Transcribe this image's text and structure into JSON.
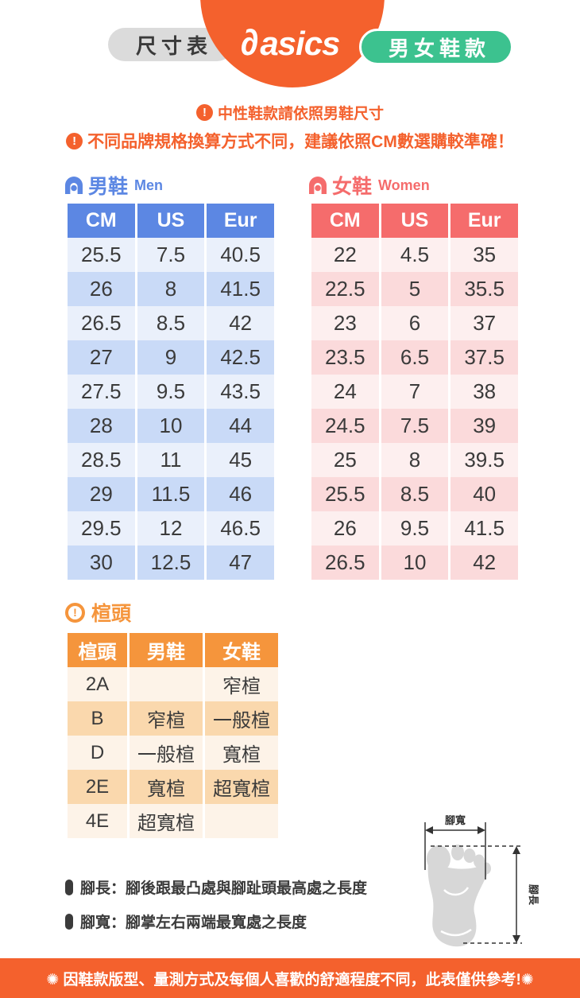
{
  "header": {
    "left_pill": "尺寸表",
    "brand": "asics",
    "brand_mark": "∂",
    "right_pill": "男女鞋款"
  },
  "icons": {
    "alert_glyph": "!"
  },
  "notices": [
    "中性鞋款請依照男鞋尺寸",
    "不同品牌規格換算方式不同，建議依照CM數選購較準確！"
  ],
  "men_table": {
    "title_zh": "男鞋",
    "title_en": "Men",
    "headers": [
      "CM",
      "US",
      "Eur"
    ],
    "rows": [
      [
        "25.5",
        "7.5",
        "40.5"
      ],
      [
        "26",
        "8",
        "41.5"
      ],
      [
        "26.5",
        "8.5",
        "42"
      ],
      [
        "27",
        "9",
        "42.5"
      ],
      [
        "27.5",
        "9.5",
        "43.5"
      ],
      [
        "28",
        "10",
        "44"
      ],
      [
        "28.5",
        "11",
        "45"
      ],
      [
        "29",
        "11.5",
        "46"
      ],
      [
        "29.5",
        "12",
        "46.5"
      ],
      [
        "30",
        "12.5",
        "47"
      ]
    ]
  },
  "women_table": {
    "title_zh": "女鞋",
    "title_en": "Women",
    "headers": [
      "CM",
      "US",
      "Eur"
    ],
    "rows": [
      [
        "22",
        "4.5",
        "35"
      ],
      [
        "22.5",
        "5",
        "35.5"
      ],
      [
        "23",
        "6",
        "37"
      ],
      [
        "23.5",
        "6.5",
        "37.5"
      ],
      [
        "24",
        "7",
        "38"
      ],
      [
        "24.5",
        "7.5",
        "39"
      ],
      [
        "25",
        "8",
        "39.5"
      ],
      [
        "25.5",
        "8.5",
        "40"
      ],
      [
        "26",
        "9.5",
        "41.5"
      ],
      [
        "26.5",
        "10",
        "42"
      ]
    ]
  },
  "width_table": {
    "title": "楦頭",
    "headers": [
      "楦頭",
      "男鞋",
      "女鞋"
    ],
    "rows": [
      [
        "2A",
        "",
        "窄楦"
      ],
      [
        "B",
        "窄楦",
        "一般楦"
      ],
      [
        "D",
        "一般楦",
        "寬楦"
      ],
      [
        "2E",
        "寬楦",
        "超寬楦"
      ],
      [
        "4E",
        "超寬楦",
        ""
      ]
    ]
  },
  "foot_diagram": {
    "width_label": "腳寬",
    "length_label": "腳長"
  },
  "notes": [
    "腳長：腳後跟最凸處與腳趾頭最高處之長度",
    "腳寬：腳掌左右兩端最寬處之長度"
  ],
  "footer": "✺ 因鞋款版型、量測方式及每個人喜歡的舒適程度不同，此表僅供參考!✺",
  "palette": {
    "orange": "#F4612D",
    "green": "#3CC28F",
    "gray_pill": "#DBDBDB",
    "men_blue": "#5C87E3",
    "women_red": "#F56C6C",
    "width_orange": "#F5953C"
  }
}
